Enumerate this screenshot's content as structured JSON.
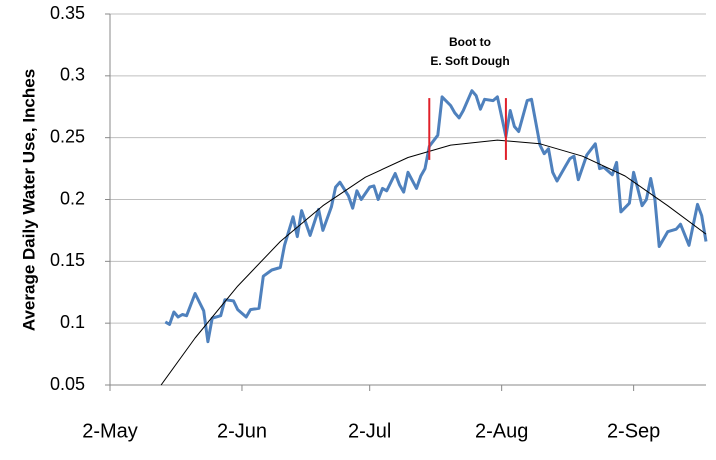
{
  "chart_data": {
    "type": "line",
    "y_label": "Average Daily Water Use, Inches",
    "xlim": [
      "2-May",
      "19-Sep"
    ],
    "xticks": [
      "2-May",
      "2-Jun",
      "2-Jul",
      "2-Aug",
      "2-Sep"
    ],
    "ylim": [
      0.05,
      0.35
    ],
    "yticks": [
      0.05,
      0.1,
      0.15,
      0.2,
      0.25,
      0.3,
      0.35
    ],
    "grid": true,
    "series": [
      {
        "color": "#4f81bd",
        "x": [
          "15-May",
          "16-May",
          "17-May",
          "18-May",
          "19-May",
          "20-May",
          "22-May",
          "24-May",
          "25-May",
          "26-May",
          "28-May",
          "29-May",
          "31-May",
          "1-Jun",
          "3-Jun",
          "4-Jun",
          "6-Jun",
          "7-Jun",
          "9-Jun",
          "11-Jun",
          "12-Jun",
          "14-Jun",
          "15-Jun",
          "16-Jun",
          "18-Jun",
          "20-Jun",
          "21-Jun",
          "23-Jun",
          "24-Jun",
          "25-Jun",
          "27-Jun",
          "28-Jun",
          "29-Jun",
          "30-Jun",
          "2-Jul",
          "3-Jul",
          "4-Jul",
          "5-Jul",
          "6-Jul",
          "8-Jul",
          "9-Jul",
          "10-Jul",
          "11-Jul",
          "13-Jul",
          "14-Jul",
          "15-Jul",
          "16-Jul",
          "18-Jul",
          "19-Jul",
          "21-Jul",
          "22-Jul",
          "23-Jul",
          "24-Jul",
          "26-Jul",
          "27-Jul",
          "28-Jul",
          "29-Jul",
          "31-Jul",
          "1-Aug",
          "3-Aug",
          "4-Aug",
          "5-Aug",
          "6-Aug",
          "8-Aug",
          "9-Aug",
          "11-Aug",
          "12-Aug",
          "13-Aug",
          "14-Aug",
          "15-Aug",
          "17-Aug",
          "18-Aug",
          "19-Aug",
          "20-Aug",
          "22-Aug",
          "24-Aug",
          "25-Aug",
          "26-Aug",
          "28-Aug",
          "29-Aug",
          "30-Aug",
          "1-Sep",
          "2-Sep",
          "4-Sep",
          "5-Sep",
          "6-Sep",
          "7-Sep",
          "8-Sep",
          "10-Sep",
          "12-Sep",
          "13-Sep",
          "15-Sep",
          "17-Sep",
          "18-Sep",
          "19-Sep"
        ],
        "values": [
          0.101,
          0.099,
          0.109,
          0.105,
          0.107,
          0.106,
          0.124,
          0.11,
          0.085,
          0.104,
          0.106,
          0.119,
          0.118,
          0.111,
          0.105,
          0.111,
          0.112,
          0.138,
          0.143,
          0.145,
          0.163,
          0.186,
          0.17,
          0.191,
          0.171,
          0.192,
          0.175,
          0.194,
          0.21,
          0.214,
          0.203,
          0.193,
          0.207,
          0.2,
          0.21,
          0.211,
          0.2,
          0.209,
          0.207,
          0.221,
          0.212,
          0.206,
          0.222,
          0.209,
          0.219,
          0.225,
          0.243,
          0.252,
          0.283,
          0.276,
          0.27,
          0.266,
          0.272,
          0.288,
          0.284,
          0.273,
          0.281,
          0.28,
          0.283,
          0.251,
          0.272,
          0.259,
          0.255,
          0.28,
          0.281,
          0.244,
          0.237,
          0.241,
          0.222,
          0.215,
          0.227,
          0.233,
          0.235,
          0.216,
          0.236,
          0.245,
          0.225,
          0.226,
          0.22,
          0.23,
          0.19,
          0.197,
          0.222,
          0.195,
          0.2,
          0.217,
          0.2,
          0.162,
          0.174,
          0.176,
          0.18,
          0.163,
          0.196,
          0.187,
          0.166
        ]
      },
      {
        "color": "#000000",
        "x": [
          "14-May",
          "22-May",
          "1-Jun",
          "11-Jun",
          "21-Jun",
          "1-Jul",
          "11-Jul",
          "21-Jul",
          "1-Aug",
          "11-Aug",
          "21-Aug",
          "31-Aug",
          "10-Sep",
          "19-Sep"
        ],
        "values": [
          0.05,
          0.088,
          0.13,
          0.166,
          0.195,
          0.218,
          0.234,
          0.244,
          0.248,
          0.245,
          0.235,
          0.219,
          0.195,
          0.172
        ]
      }
    ],
    "annotation": [
      "Boot to",
      "E. Soft Dough"
    ],
    "markers": {
      "x": [
        "16-Jul",
        "3-Aug"
      ],
      "span": [
        0.232,
        0.282
      ],
      "color": "#e0202a"
    }
  }
}
